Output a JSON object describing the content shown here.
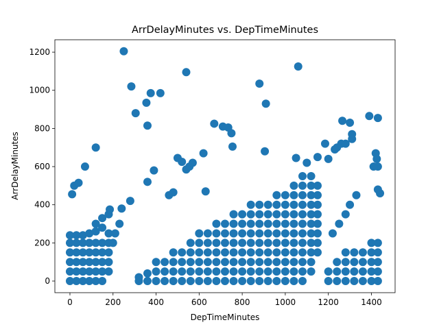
{
  "chart_data": {
    "type": "scatter",
    "title": "ArrDelayMinutes vs. DepTimeMinutes",
    "x_label": "DepTimeMinutes",
    "y_label": "ArrDelayMinutes",
    "color": "#1f77b4",
    "xlim": [
      -70,
      1510
    ],
    "ylim": [
      -61,
      1265
    ],
    "xticks": [
      0,
      200,
      400,
      600,
      800,
      1000,
      1200,
      1400
    ],
    "yticks": [
      0,
      200,
      400,
      600,
      800,
      1000,
      1200
    ],
    "x": [
      0,
      0,
      0,
      0,
      0,
      0,
      30,
      30,
      30,
      30,
      30,
      30,
      60,
      60,
      60,
      60,
      60,
      60,
      90,
      90,
      90,
      90,
      90,
      90,
      120,
      120,
      120,
      120,
      120,
      120,
      120,
      150,
      150,
      150,
      150,
      150,
      150,
      150,
      180,
      180,
      180,
      180,
      180,
      180,
      200,
      210,
      230,
      320,
      320,
      360,
      360,
      400,
      400,
      400,
      440,
      440,
      440,
      480,
      480,
      480,
      480,
      520,
      520,
      520,
      520,
      560,
      560,
      560,
      560,
      560,
      600,
      600,
      600,
      600,
      600,
      600,
      640,
      640,
      640,
      640,
      640,
      640,
      680,
      680,
      680,
      680,
      680,
      680,
      680,
      720,
      720,
      720,
      720,
      720,
      720,
      720,
      760,
      760,
      760,
      760,
      760,
      760,
      760,
      760,
      800,
      800,
      800,
      800,
      800,
      800,
      800,
      800,
      840,
      840,
      840,
      840,
      840,
      840,
      840,
      840,
      840,
      880,
      880,
      880,
      880,
      880,
      880,
      880,
      880,
      880,
      920,
      920,
      920,
      920,
      920,
      920,
      920,
      920,
      920,
      960,
      960,
      960,
      960,
      960,
      960,
      960,
      960,
      960,
      960,
      1000,
      1000,
      1000,
      1000,
      1000,
      1000,
      1000,
      1000,
      1000,
      1000,
      1040,
      1040,
      1040,
      1040,
      1040,
      1040,
      1040,
      1040,
      1040,
      1040,
      1040,
      1080,
      1080,
      1080,
      1080,
      1080,
      1080,
      1080,
      1080,
      1080,
      1080,
      1080,
      1080,
      1120,
      1120,
      1120,
      1120,
      1120,
      1120,
      1120,
      1120,
      1120,
      1120,
      1120,
      1150,
      1150,
      1150,
      1150,
      1150,
      1150,
      1150,
      1150,
      1200,
      1200,
      1240,
      1240,
      1240,
      1280,
      1280,
      1280,
      1280,
      1320,
      1320,
      1320,
      1320,
      1360,
      1360,
      1360,
      1360,
      1400,
      1400,
      1400,
      1400,
      1400,
      1430,
      1430,
      1430,
      1430,
      1430,
      1220,
      1250,
      1280,
      1300,
      1330,
      250,
      285,
      305,
      355,
      360,
      375,
      420,
      540,
      880,
      910,
      1060,
      670,
      710,
      735,
      750,
      755,
      1265,
      1300,
      1310,
      1310,
      1390,
      1430,
      1240,
      1260,
      1280,
      1185,
      905,
      540,
      555,
      570,
      620,
      630,
      120,
      70,
      40,
      20,
      10,
      390,
      360,
      460,
      480,
      500,
      520,
      280,
      240,
      185,
      1420,
      1425,
      1430,
      1410,
      1440,
      1430,
      1050,
      1100,
      1150,
      1200,
      1230
    ],
    "values": [
      0,
      50,
      100,
      150,
      200,
      240,
      0,
      50,
      100,
      150,
      200,
      240,
      0,
      50,
      100,
      150,
      200,
      240,
      0,
      50,
      100,
      150,
      200,
      250,
      0,
      50,
      100,
      150,
      200,
      260,
      300,
      0,
      50,
      100,
      150,
      200,
      280,
      330,
      50,
      100,
      150,
      200,
      250,
      350,
      200,
      250,
      300,
      0,
      20,
      0,
      40,
      0,
      50,
      100,
      0,
      50,
      100,
      0,
      50,
      100,
      150,
      0,
      50,
      100,
      150,
      0,
      50,
      100,
      150,
      200,
      0,
      50,
      100,
      150,
      200,
      250,
      0,
      50,
      100,
      150,
      200,
      250,
      0,
      50,
      100,
      150,
      200,
      250,
      300,
      0,
      50,
      100,
      150,
      200,
      250,
      300,
      0,
      50,
      100,
      150,
      200,
      250,
      300,
      350,
      0,
      50,
      100,
      150,
      200,
      250,
      300,
      350,
      0,
      50,
      100,
      150,
      200,
      250,
      300,
      350,
      400,
      0,
      50,
      100,
      150,
      200,
      250,
      300,
      350,
      400,
      0,
      50,
      100,
      150,
      200,
      250,
      300,
      350,
      400,
      0,
      50,
      100,
      150,
      200,
      250,
      300,
      350,
      400,
      450,
      0,
      50,
      100,
      150,
      200,
      250,
      300,
      350,
      400,
      450,
      0,
      50,
      100,
      150,
      200,
      250,
      300,
      350,
      400,
      450,
      500,
      0,
      50,
      100,
      150,
      200,
      250,
      300,
      350,
      400,
      450,
      500,
      550,
      50,
      100,
      150,
      200,
      250,
      300,
      350,
      400,
      450,
      500,
      550,
      150,
      200,
      250,
      300,
      350,
      400,
      450,
      500,
      0,
      50,
      0,
      50,
      100,
      0,
      50,
      100,
      150,
      0,
      50,
      100,
      150,
      0,
      50,
      100,
      150,
      0,
      50,
      100,
      150,
      200,
      0,
      50,
      100,
      150,
      200,
      250,
      300,
      350,
      400,
      450,
      1205,
      1020,
      880,
      935,
      815,
      985,
      985,
      1095,
      1035,
      930,
      1125,
      825,
      810,
      805,
      775,
      705,
      840,
      830,
      745,
      770,
      865,
      855,
      700,
      720,
      720,
      720,
      680,
      585,
      600,
      620,
      670,
      470,
      700,
      600,
      515,
      500,
      455,
      580,
      520,
      450,
      465,
      645,
      625,
      420,
      380,
      375,
      670,
      640,
      600,
      600,
      460,
      480,
      645,
      620,
      650,
      640,
      690
    ]
  }
}
